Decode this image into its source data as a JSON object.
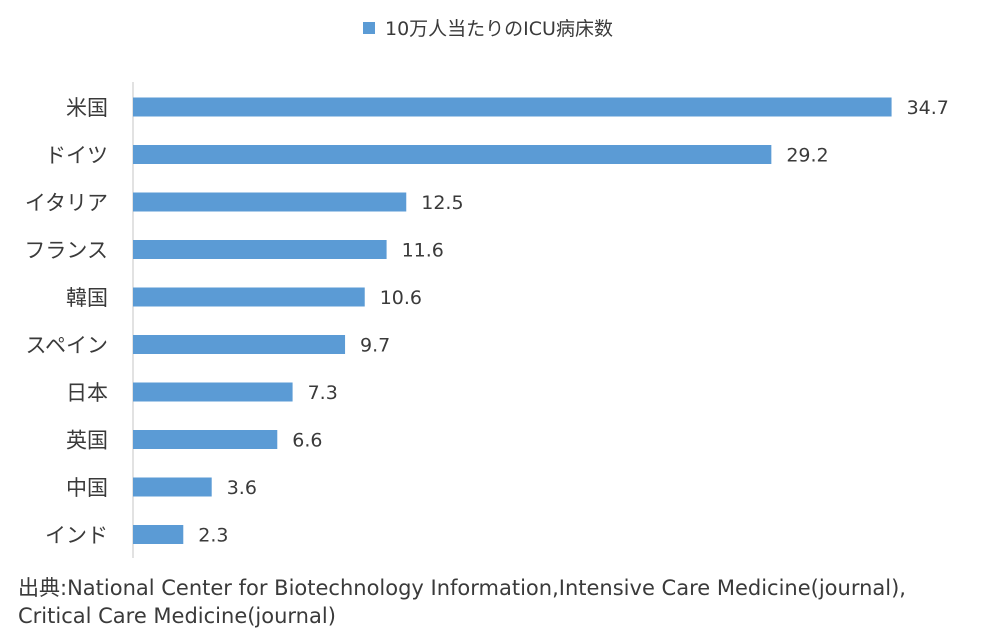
{
  "chart_data": {
    "type": "bar",
    "orientation": "horizontal",
    "title": "",
    "xlabel": "",
    "ylabel": "",
    "categories": [
      "米国",
      "ドイツ",
      "イタリア",
      "フランス",
      "韓国",
      "スペイン",
      "日本",
      "英国",
      "中国",
      "インド"
    ],
    "series": [
      {
        "name": "10万人当たりのICU病床数",
        "values": [
          34.7,
          29.2,
          12.5,
          11.6,
          10.6,
          9.7,
          7.3,
          6.6,
          3.6,
          2.3
        ],
        "color": "#5b9bd5"
      }
    ],
    "value_labels": [
      "34.7",
      "29.2",
      "12.5",
      "11.6",
      "10.6",
      "9.7",
      "7.3",
      "6.6",
      "3.6",
      "2.3"
    ],
    "xlim": [
      0,
      36
    ],
    "grid": false,
    "legend_position": "top"
  },
  "source": {
    "line1": "出典:National Center for Biotechnology Information,Intensive Care Medicine(journal),",
    "line2": "Critical Care Medicine(journal)"
  }
}
